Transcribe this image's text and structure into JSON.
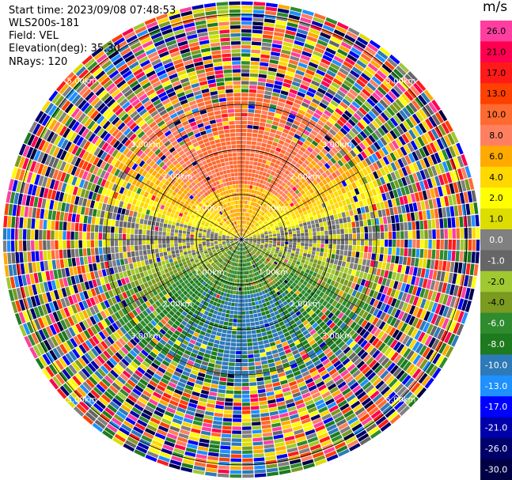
{
  "info": {
    "start_time": "Start time: 2023/09/08 07:48:53",
    "instrument": "WLS200s-181",
    "field": "Field: VEL",
    "elevation": "Elevation(deg): 35.30",
    "nrays": "NRays: 120"
  },
  "chart_data": {
    "type": "heatmap",
    "projection": "polar-ppi",
    "nrays": 120,
    "range_rings_km": [
      1.0,
      2.0,
      3.0,
      5.0
    ],
    "ring_labels": [
      "1.00km",
      "2.00km",
      "3.00km",
      "5.00km"
    ],
    "max_range_km": 5.3,
    "grid": true,
    "colorbar": {
      "unit": "m/s",
      "ticks": [
        "26.0",
        "21.0",
        "17.0",
        "13.0",
        "10.0",
        "8.0",
        "6.0",
        "4.0",
        "2.0",
        "1.0",
        "0.0",
        "-1.0",
        "-2.0",
        "-4.0",
        "-6.0",
        "-8.0",
        "-10.0",
        "-13.0",
        "-17.0",
        "-21.0",
        "-26.0",
        "-30.0"
      ],
      "colors": [
        "#ff3ea0",
        "#ff0050",
        "#ff1a1a",
        "#ff4000",
        "#ff6a30",
        "#ff8060",
        "#ffaa00",
        "#ffd800",
        "#ffff00",
        "#dddd00",
        "#808080",
        "#666666",
        "#a0c830",
        "#7a9a20",
        "#2e8b2e",
        "#1e7a1e",
        "#2d7ab8",
        "#1e90ff",
        "#0000ff",
        "#0000aa",
        "#00006b",
        "#000044"
      ]
    },
    "velocity_pattern": {
      "north": "positive (8 to 13 m/s)",
      "south": "negative (-6 to -10 m/s)",
      "east_west_axis": "near zero (-1 to 2 m/s)"
    }
  }
}
